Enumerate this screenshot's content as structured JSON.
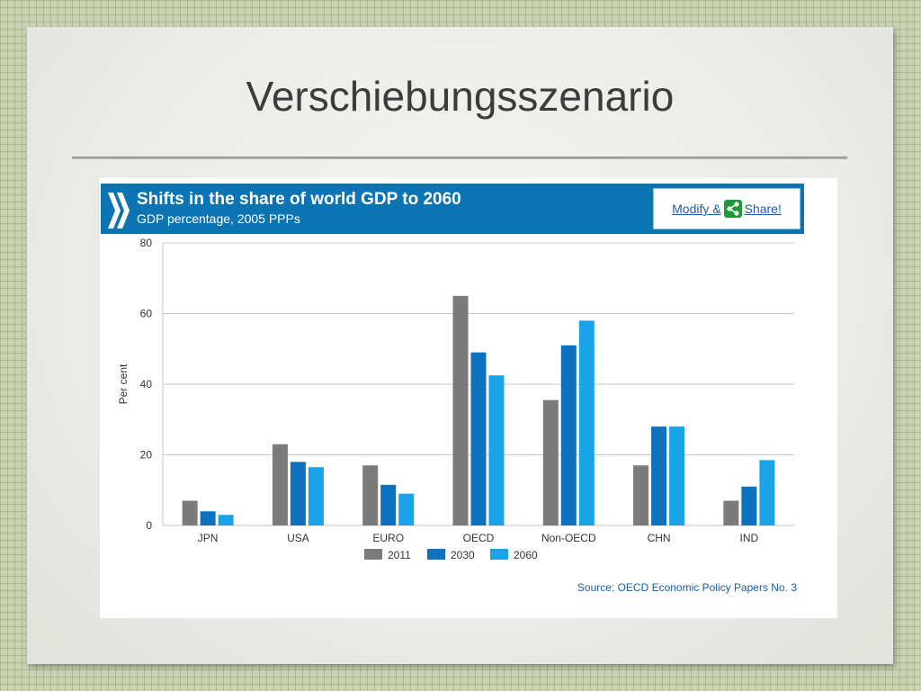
{
  "slide": {
    "title": "Verschiebungsszenario"
  },
  "chart_header": {
    "share_prefix": "Modify &",
    "share_suffix": "Share!"
  },
  "colors": {
    "header_bg": "#0d74b4",
    "series_2011": "#7b7b7b",
    "series_2030": "#0f72bf",
    "series_2060": "#1aa3e8",
    "link": "#1a5fa8"
  },
  "chart_data": {
    "type": "bar",
    "title": "Shifts in the share of world GDP to 2060",
    "subtitle": "GDP percentage, 2005 PPPs",
    "ylabel": "Per cent",
    "xlabel": "",
    "ylim": [
      0,
      80
    ],
    "yticks": [
      0,
      20,
      40,
      60,
      80
    ],
    "grid": true,
    "legend_position": "bottom",
    "categories": [
      "JPN",
      "USA",
      "EURO",
      "OECD",
      "Non-OECD",
      "CHN",
      "IND"
    ],
    "series": [
      {
        "name": "2011",
        "values": [
          7,
          23,
          17,
          65,
          35.5,
          17,
          7
        ]
      },
      {
        "name": "2030",
        "values": [
          4,
          18,
          11.5,
          49,
          51,
          28,
          11
        ]
      },
      {
        "name": "2060",
        "values": [
          3,
          16.5,
          9,
          42.5,
          58,
          28,
          18.5
        ]
      }
    ],
    "source": "Source: OECD Economic Policy Papers No. 3"
  }
}
